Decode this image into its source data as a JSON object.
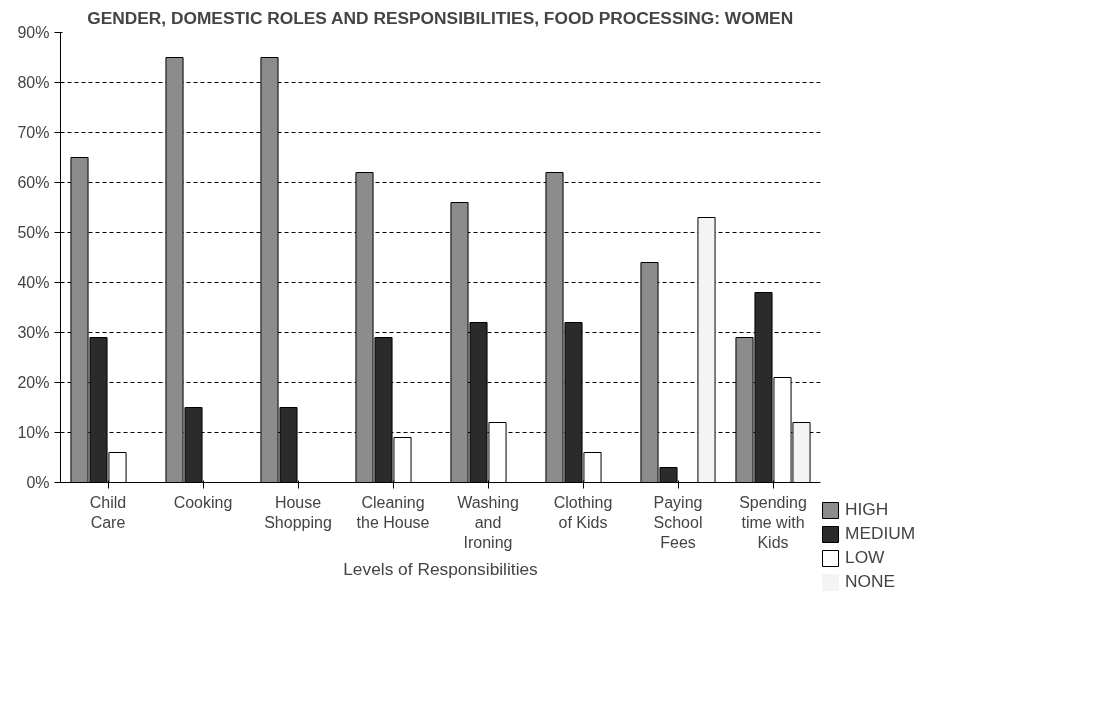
{
  "chart_data": {
    "type": "bar",
    "title": "GENDER, DOMESTIC ROLES AND RESPONSIBILITIES, FOOD PROCESSING: WOMEN",
    "xlabel": "Levels of Responsibilities",
    "categories": [
      "Child Care",
      "Cooking",
      "House Shopping",
      "Cleaning the House",
      "Washing and Ironing",
      "Clothing of Kids",
      "Paying School Fees",
      "Spending time with Kids"
    ],
    "series": [
      {
        "name": "HIGH",
        "color": "#8c8c8c",
        "values": [
          65,
          85,
          85,
          62,
          56,
          62,
          44,
          29
        ]
      },
      {
        "name": "MEDIUM",
        "color": "#2b2b2b",
        "values": [
          29,
          15,
          15,
          29,
          32,
          32,
          3,
          38
        ]
      },
      {
        "name": "LOW",
        "color": "#ffffff",
        "values": [
          6,
          0,
          0,
          9,
          12,
          6,
          0,
          21
        ]
      },
      {
        "name": "NONE",
        "color": "#f4f4f4",
        "values": [
          0,
          0,
          0,
          0,
          0,
          0,
          53,
          12
        ]
      }
    ],
    "ylim": [
      0,
      90
    ],
    "yticks": [
      {
        "value": 0,
        "label": "0%"
      },
      {
        "value": 10,
        "label": "10%"
      },
      {
        "value": 20,
        "label": "20%"
      },
      {
        "value": 30,
        "label": "30%"
      },
      {
        "value": 40,
        "label": "40%"
      },
      {
        "value": 50,
        "label": "50%"
      },
      {
        "value": 60,
        "label": "60%"
      },
      {
        "value": 70,
        "label": "70%"
      },
      {
        "value": 80,
        "label": "80%"
      },
      {
        "value": 90,
        "label": "90%"
      }
    ],
    "grid": "y",
    "legend": "bottom right"
  }
}
